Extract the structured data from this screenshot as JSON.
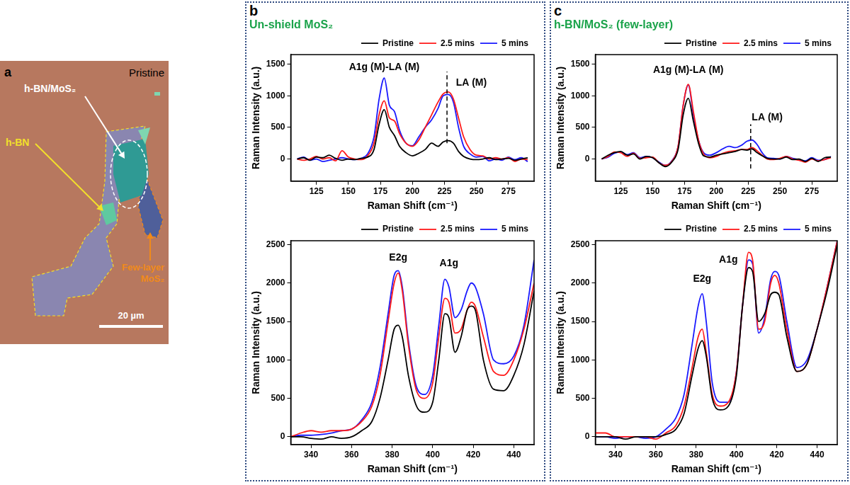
{
  "image_panel": {
    "letter": "a",
    "caption": "Pristine",
    "labels": [
      "h-BN/MoS₂",
      "h-BN",
      "Few-layer MoS₂"
    ],
    "scale_bar": "20 µm"
  },
  "panel_letters": [
    "b",
    "c"
  ],
  "chart_data": [
    {
      "type": "line",
      "title": "Un-shield MoS₂",
      "x_label": "Raman Shift (cm⁻¹)",
      "y_label": "Raman Intensity (a.u.)",
      "x": [
        110,
        115,
        120,
        125,
        130,
        135,
        140,
        145,
        150,
        155,
        160,
        165,
        170,
        174,
        178,
        182,
        186,
        190,
        195,
        200,
        205,
        210,
        215,
        220,
        224,
        228,
        232,
        236,
        240,
        245,
        250,
        255,
        260,
        265,
        270,
        275,
        280,
        285,
        290
      ],
      "series": [
        {
          "name": "Pristine",
          "color": "#000000",
          "values": [
            0,
            20,
            -20,
            30,
            20,
            60,
            10,
            -20,
            0,
            -10,
            10,
            30,
            150,
            550,
            780,
            500,
            370,
            200,
            100,
            50,
            90,
            150,
            250,
            200,
            270,
            290,
            250,
            120,
            40,
            0,
            -10,
            0,
            20,
            -10,
            0,
            10,
            -20,
            0,
            20
          ]
        },
        {
          "name": "2.5 mins",
          "color": "#ff1a1a",
          "values": [
            0,
            -20,
            0,
            40,
            0,
            20,
            -30,
            130,
            30,
            0,
            -10,
            50,
            250,
            700,
            920,
            650,
            600,
            400,
            250,
            200,
            300,
            500,
            700,
            900,
            1030,
            1060,
            950,
            650,
            350,
            150,
            60,
            50,
            0,
            20,
            0,
            20,
            -40,
            0,
            -10
          ]
        },
        {
          "name": "5 mins",
          "color": "#1a1aff",
          "values": [
            0,
            30,
            -20,
            0,
            -40,
            -20,
            0,
            20,
            0,
            -10,
            10,
            80,
            350,
            950,
            1280,
            850,
            750,
            450,
            250,
            210,
            350,
            500,
            620,
            800,
            1000,
            1020,
            900,
            500,
            200,
            80,
            30,
            40,
            -30,
            0,
            -20,
            30,
            -10,
            20,
            -40
          ]
        }
      ],
      "xlim": [
        105,
        295
      ],
      "xticks": [
        125,
        150,
        175,
        200,
        225,
        250,
        275
      ],
      "ylim": [
        -350,
        1650
      ],
      "yticks": [
        0,
        500,
        1000,
        1500
      ],
      "grid": false,
      "legend": "top right",
      "annotations": [
        {
          "text": "A1g (M)-LA (M)",
          "x": 178,
          "y": 1450
        },
        {
          "text": "LA (M)",
          "x": 246,
          "y": 1200
        }
      ],
      "vline": {
        "x": 227,
        "y": [
          250,
          1380
        ],
        "line_style": "dashed"
      }
    },
    {
      "type": "line",
      "x_label": "Raman Shift (cm⁻¹)",
      "y_label": "Raman Intensity (a.u.)",
      "x": [
        330,
        335,
        340,
        345,
        350,
        355,
        360,
        365,
        370,
        374,
        378,
        381,
        383,
        385,
        388,
        392,
        396,
        400,
        403,
        406,
        408,
        411,
        414,
        417,
        419,
        421,
        425,
        430,
        435,
        440,
        445,
        450
      ],
      "series": [
        {
          "name": "Pristine",
          "color": "#000000",
          "values": [
            0,
            0,
            -20,
            -30,
            0,
            -20,
            0,
            80,
            200,
            500,
            1000,
            1400,
            1450,
            1300,
            800,
            400,
            320,
            450,
            1000,
            1600,
            1550,
            1100,
            1300,
            1650,
            1700,
            1650,
            1000,
            620,
            600,
            800,
            1200,
            1900
          ]
        },
        {
          "name": "2.5 mins",
          "color": "#ff1a1a",
          "values": [
            0,
            50,
            80,
            60,
            80,
            80,
            100,
            200,
            400,
            800,
            1500,
            2000,
            2130,
            1900,
            1200,
            600,
            500,
            700,
            1300,
            1800,
            1750,
            1350,
            1400,
            1650,
            1750,
            1700,
            1300,
            850,
            800,
            1000,
            1400,
            2000
          ]
        },
        {
          "name": "5 mins",
          "color": "#1a1aff",
          "values": [
            0,
            20,
            20,
            30,
            50,
            80,
            100,
            220,
            450,
            900,
            1600,
            2100,
            2160,
            1950,
            1250,
            650,
            550,
            800,
            1450,
            2050,
            1950,
            1550,
            1650,
            1900,
            2000,
            1950,
            1600,
            1000,
            950,
            1050,
            1450,
            2300
          ]
        }
      ],
      "xlim": [
        330,
        450
      ],
      "xticks": [
        340,
        360,
        380,
        400,
        420,
        440
      ],
      "ylim": [
        -100,
        2550
      ],
      "yticks": [
        0,
        500,
        1000,
        1500,
        2000,
        2500
      ],
      "grid": false,
      "legend": "top right",
      "annotations": [
        {
          "text": "E2g",
          "x": 383,
          "y": 2330
        },
        {
          "text": "A1g",
          "x": 408,
          "y": 2250
        }
      ]
    },
    {
      "type": "line",
      "title": "h-BN/MoS₂ (few-layer)",
      "x_label": "Raman Shift (cm⁻¹)",
      "y_label": "Raman Intensity (a.u.)",
      "x": [
        110,
        115,
        120,
        125,
        130,
        135,
        140,
        145,
        150,
        155,
        160,
        165,
        170,
        174,
        178,
        182,
        186,
        190,
        195,
        200,
        205,
        210,
        215,
        220,
        224,
        228,
        232,
        236,
        240,
        245,
        250,
        255,
        260,
        265,
        270,
        275,
        280,
        285,
        290
      ],
      "series": [
        {
          "name": "Pristine",
          "color": "#000000",
          "values": [
            0,
            60,
            100,
            120,
            60,
            80,
            0,
            40,
            20,
            -60,
            -120,
            -50,
            150,
            700,
            960,
            600,
            250,
            50,
            30,
            60,
            80,
            100,
            120,
            150,
            140,
            160,
            100,
            50,
            10,
            0,
            0,
            30,
            -10,
            0,
            -40,
            10,
            -40,
            20,
            30
          ]
        },
        {
          "name": "2.5 mins",
          "color": "#ff1a1a",
          "values": [
            0,
            40,
            110,
            100,
            40,
            90,
            10,
            20,
            30,
            -60,
            -100,
            -40,
            200,
            850,
            1180,
            750,
            300,
            80,
            20,
            40,
            90,
            120,
            130,
            150,
            150,
            180,
            130,
            60,
            0,
            -10,
            10,
            40,
            0,
            -20,
            -50,
            0,
            -30,
            -10,
            20
          ]
        },
        {
          "name": "5 mins",
          "color": "#1a1aff",
          "values": [
            0,
            30,
            90,
            110,
            70,
            100,
            20,
            40,
            20,
            -50,
            -100,
            -30,
            200,
            850,
            1170,
            700,
            300,
            100,
            60,
            100,
            160,
            200,
            180,
            220,
            280,
            300,
            230,
            100,
            20,
            10,
            0,
            40,
            10,
            -10,
            -30,
            20,
            -20,
            -10,
            40
          ]
        }
      ],
      "xlim": [
        105,
        295
      ],
      "xticks": [
        125,
        150,
        175,
        200,
        225,
        250,
        275
      ],
      "ylim": [
        -350,
        1650
      ],
      "yticks": [
        0,
        500,
        1000,
        1500
      ],
      "grid": false,
      "legend": "top right",
      "annotations": [
        {
          "text": "A1g (M)-LA (M)",
          "x": 178,
          "y": 1400
        },
        {
          "text": "LA (M)",
          "x": 240,
          "y": 650
        }
      ],
      "vline": {
        "x": 227,
        "y": [
          -150,
          550
        ],
        "line_style": "dashed"
      }
    },
    {
      "type": "line",
      "x_label": "Raman Shift (cm⁻¹)",
      "y_label": "Raman Intensity (a.u.)",
      "x": [
        330,
        335,
        340,
        345,
        350,
        355,
        360,
        365,
        370,
        374,
        378,
        381,
        383,
        385,
        388,
        392,
        396,
        400,
        403,
        406,
        408,
        411,
        414,
        417,
        419,
        421,
        425,
        430,
        435,
        440,
        445,
        450
      ],
      "series": [
        {
          "name": "Pristine",
          "color": "#000000",
          "values": [
            0,
            0,
            0,
            -30,
            0,
            0,
            0,
            30,
            100,
            300,
            800,
            1150,
            1250,
            1050,
            500,
            350,
            400,
            800,
            1700,
            2200,
            2150,
            1500,
            1600,
            1850,
            1880,
            1850,
            1300,
            850,
            950,
            1400,
            1900,
            2500
          ]
        },
        {
          "name": "2.5 mins",
          "color": "#ff1a1a",
          "values": [
            50,
            50,
            0,
            0,
            0,
            0,
            -30,
            50,
            150,
            400,
            900,
            1300,
            1400,
            1100,
            550,
            400,
            450,
            850,
            1700,
            2400,
            2300,
            1400,
            1500,
            2000,
            2100,
            2000,
            1400,
            850,
            950,
            1400,
            1950,
            2550
          ]
        },
        {
          "name": "5 mins",
          "color": "#1a1aff",
          "values": [
            0,
            0,
            -20,
            0,
            0,
            -20,
            0,
            100,
            250,
            550,
            1200,
            1700,
            1860,
            1500,
            700,
            450,
            450,
            850,
            1700,
            2300,
            2250,
            1350,
            1550,
            2050,
            2150,
            2100,
            1500,
            900,
            1000,
            1400,
            1950,
            2550
          ]
        }
      ],
      "xlim": [
        330,
        450
      ],
      "xticks": [
        340,
        360,
        380,
        400,
        420,
        440
      ],
      "ylim": [
        -100,
        2550
      ],
      "yticks": [
        0,
        500,
        1000,
        1500,
        2000,
        2500
      ],
      "grid": false,
      "legend": "top right",
      "annotations": [
        {
          "text": "E2g",
          "x": 383,
          "y": 2050
        },
        {
          "text": "A1g",
          "x": 396,
          "y": 2300
        }
      ]
    }
  ]
}
